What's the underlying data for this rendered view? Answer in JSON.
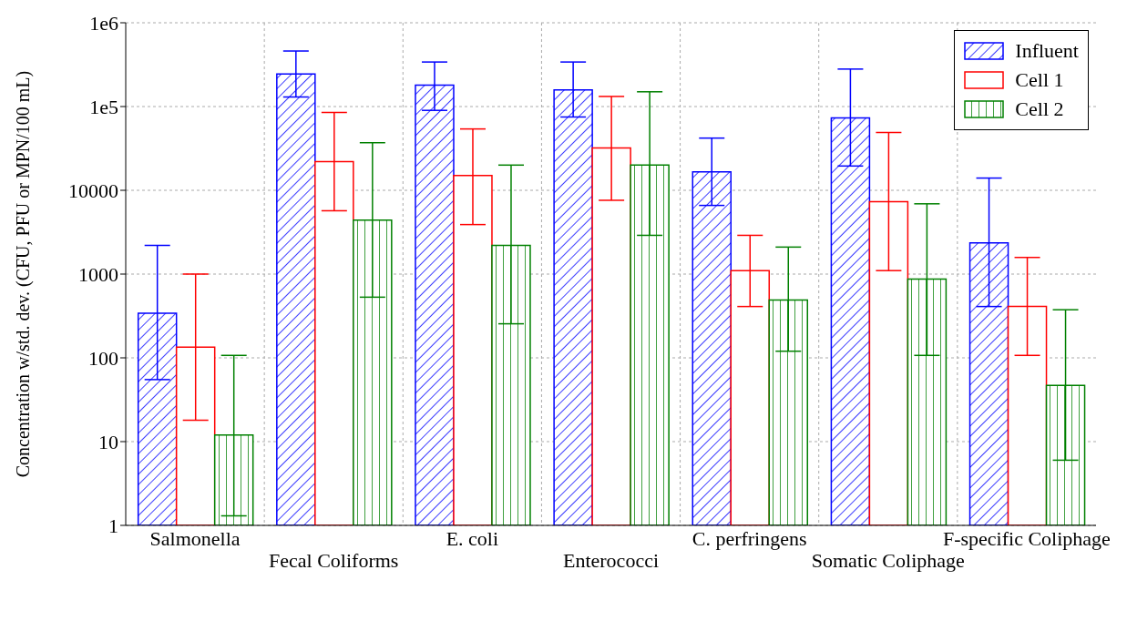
{
  "chart_data": {
    "type": "bar",
    "ylabel": "Concentration w/std. dev. (CFU, PFU or MPN/100 mL)",
    "categories": [
      "Salmonella",
      "Fecal Coliforms",
      "E. coli",
      "Enterococci",
      "C. perfringens",
      "Somatic Coliphage",
      "F-specific Coliphage"
    ],
    "series": [
      {
        "name": "Influent",
        "color": "#0000ff",
        "values": [
          340,
          245000,
          180000,
          158000,
          16600,
          73000,
          2350
        ],
        "errors": [
          [
            55,
            2200
          ],
          [
            130000,
            460000
          ],
          [
            90000,
            340000
          ],
          [
            75000,
            340000
          ],
          [
            6600,
            42000
          ],
          [
            19500,
            280000
          ],
          [
            410,
            14000
          ]
        ]
      },
      {
        "name": "Cell 1",
        "color": "#ff0000",
        "values": [
          134,
          22000,
          15000,
          32000,
          1100,
          7300,
          410
        ],
        "errors": [
          [
            18,
            1000
          ],
          [
            5700,
            85000
          ],
          [
            3900,
            54000
          ],
          [
            7600,
            132000
          ],
          [
            410,
            2900
          ],
          [
            1100,
            49000
          ],
          [
            107,
            1580
          ]
        ]
      },
      {
        "name": "Cell 2",
        "color": "#008000",
        "values": [
          12,
          4400,
          2200,
          20000,
          490,
          870,
          47
        ],
        "errors": [
          [
            1.3,
            107
          ],
          [
            530,
            37000
          ],
          [
            255,
            20000
          ],
          [
            2900,
            150000
          ],
          [
            120,
            2100
          ],
          [
            107,
            6900
          ],
          [
            6,
            375
          ]
        ]
      }
    ],
    "log": "y",
    "ylim": [
      1,
      1000000
    ],
    "yticks": [
      1,
      10,
      100,
      1000,
      10000,
      {
        "value": 100000,
        "label": "1e5"
      },
      {
        "value": 1000000,
        "label": "1e6"
      }
    ],
    "grid": true,
    "legend": "top right"
  }
}
